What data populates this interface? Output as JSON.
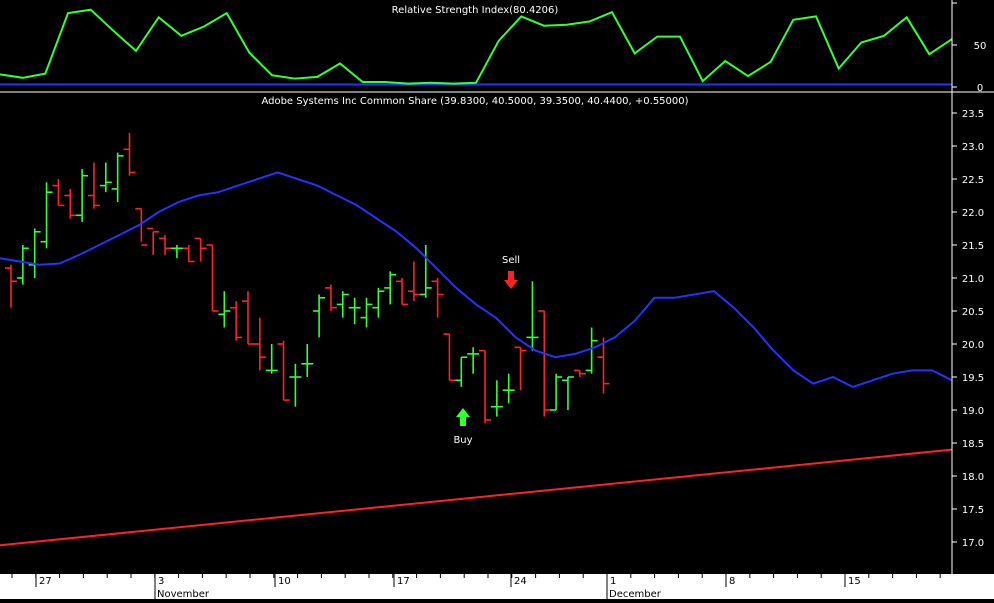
{
  "chart_data": [
    {
      "type": "line",
      "panel": "indicator",
      "title": "Relative Strength Index(80.4206)",
      "ylim": [
        0,
        100
      ],
      "yticks": [
        "0",
        "50"
      ],
      "series": [
        {
          "name": "RSI",
          "color": "#33ff33",
          "values": [
            15,
            11,
            16,
            88,
            92,
            67,
            43,
            83,
            61,
            72,
            88,
            41,
            14,
            10,
            12,
            28,
            6,
            6,
            4,
            5,
            4,
            5,
            55,
            84,
            73,
            74,
            78,
            89,
            40,
            60,
            60,
            7,
            31,
            13,
            30,
            80,
            84,
            22,
            53,
            61,
            83,
            39,
            57
          ]
        },
        {
          "name": "",
          "color": "#2233ff",
          "values": [
            3,
            3
          ]
        }
      ]
    },
    {
      "type": "bar",
      "panel": "price",
      "title": "Adobe Systems Inc Common Share (39.8300, 40.5000, 39.3500, 40.4400, +0.55000)",
      "ylim": [
        16.5,
        23.7
      ],
      "yticks": [
        "17.0",
        "17.5",
        "18.0",
        "18.5",
        "19.0",
        "19.5",
        "20.0",
        "20.5",
        "21.0",
        "21.5",
        "22.0",
        "22.5",
        "23.0",
        "23.5"
      ],
      "up_color": "#33ff33",
      "down_color": "#ff2222",
      "ohlc": [
        [
          21.15,
          21.2,
          20.55,
          20.95
        ],
        [
          21.0,
          21.5,
          20.9,
          21.45
        ],
        [
          21.2,
          21.75,
          21.0,
          21.7
        ],
        [
          21.55,
          22.45,
          21.45,
          22.3
        ],
        [
          22.4,
          22.5,
          22.1,
          22.1
        ],
        [
          22.25,
          22.35,
          21.9,
          21.95
        ],
        [
          21.95,
          22.65,
          21.85,
          22.55
        ],
        [
          22.25,
          22.75,
          22.05,
          22.1
        ],
        [
          22.4,
          22.75,
          22.3,
          22.45
        ],
        [
          22.35,
          22.9,
          22.15,
          22.85
        ],
        [
          22.95,
          23.2,
          22.55,
          22.6
        ],
        [
          22.05,
          22.05,
          21.55,
          21.5
        ],
        [
          21.75,
          21.7,
          21.35,
          21.7
        ],
        [
          21.6,
          21.65,
          21.35,
          21.45
        ],
        [
          21.45,
          21.5,
          21.3,
          21.45
        ],
        [
          21.45,
          21.5,
          21.25,
          21.25
        ],
        [
          21.6,
          21.6,
          21.25,
          21.45
        ],
        [
          21.5,
          21.5,
          20.5,
          20.5
        ],
        [
          20.45,
          20.8,
          20.25,
          20.5
        ],
        [
          20.55,
          20.65,
          20.05,
          20.1
        ],
        [
          20.65,
          20.8,
          20.0,
          20.0
        ],
        [
          20.0,
          20.4,
          19.6,
          19.8
        ],
        [
          19.6,
          20.0,
          19.55,
          19.6
        ],
        [
          20.0,
          20.05,
          19.15,
          19.15
        ],
        [
          19.5,
          19.7,
          19.05,
          19.5
        ],
        [
          19.7,
          20.0,
          19.5,
          19.7
        ]
      ],
      "ohlc_cont": [
        [
          20.5,
          20.75,
          20.1,
          20.7
        ],
        [
          20.85,
          20.9,
          20.5,
          20.55
        ],
        [
          20.6,
          20.8,
          20.4,
          20.75
        ],
        [
          20.55,
          20.7,
          20.3,
          20.55
        ],
        [
          20.4,
          20.7,
          20.25,
          20.6
        ],
        [
          20.55,
          20.85,
          20.4,
          20.8
        ],
        [
          20.85,
          21.1,
          20.6,
          21.05
        ],
        [
          20.95,
          21.0,
          20.6,
          20.6
        ],
        [
          20.8,
          21.25,
          20.65,
          20.75
        ],
        [
          20.75,
          21.5,
          20.7,
          20.85
        ],
        [
          20.95,
          21.0,
          20.4,
          20.75
        ]
      ],
      "ohlc_dec": [
        [
          20.15,
          20.15,
          19.45,
          19.45
        ],
        [
          19.45,
          19.8,
          19.35,
          19.8
        ],
        [
          19.85,
          19.95,
          19.55,
          19.85
        ],
        [
          19.9,
          19.9,
          18.8,
          18.85
        ],
        [
          19.05,
          19.45,
          18.9,
          19.05
        ],
        [
          19.3,
          19.55,
          19.1,
          19.3
        ],
        [
          19.95,
          19.95,
          19.3,
          19.9
        ],
        [
          20.1,
          20.95,
          19.9,
          20.1
        ],
        [
          20.5,
          20.5,
          18.9,
          19.0
        ],
        [
          19.0,
          19.55,
          19.0,
          19.5
        ],
        [
          19.45,
          19.5,
          19.0,
          19.5
        ],
        [
          19.6,
          19.6,
          19.5,
          19.55
        ],
        [
          19.6,
          20.25,
          19.55,
          20.05
        ],
        [
          19.8,
          20.1,
          19.25,
          19.4
        ]
      ],
      "ma_blue": [
        21.3,
        21.25,
        21.2,
        21.22,
        21.35,
        21.5,
        21.65,
        21.8,
        22.0,
        22.15,
        22.25,
        22.3,
        22.4,
        22.5,
        22.6,
        22.5,
        22.4,
        22.25,
        22.1,
        21.9,
        21.7,
        21.45,
        21.15,
        20.85,
        20.6,
        20.4,
        20.1,
        19.9,
        19.8,
        19.85,
        19.95,
        20.1,
        20.35,
        20.7,
        20.7,
        20.75,
        20.8,
        20.55,
        20.25,
        19.9,
        19.6,
        19.4,
        19.5,
        19.35,
        19.45,
        19.55,
        19.6,
        19.6,
        19.45
      ],
      "ma_red": [
        16.95,
        18.4
      ],
      "xticks": [
        "27",
        "3",
        "10",
        "17",
        "24",
        "1",
        "8",
        "15"
      ],
      "month_labels": [
        "November",
        "December"
      ],
      "annotations": [
        {
          "text": "Buy",
          "type": "up-arrow",
          "color": "#33ff33"
        },
        {
          "text": "Sell",
          "type": "down-arrow",
          "color": "#ff2222"
        }
      ]
    }
  ]
}
